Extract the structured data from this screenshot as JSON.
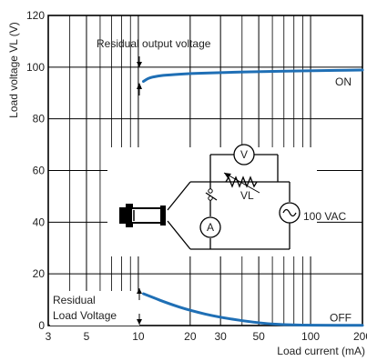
{
  "chart_data": {
    "type": "line",
    "x_scale": "log",
    "xlim": [
      3,
      200
    ],
    "ylim": [
      0,
      120
    ],
    "grid": true,
    "xlabel": "Load current (mA)",
    "ylabel": "Load voltage VL (V)",
    "x_ticks": [
      3,
      5,
      10,
      20,
      30,
      50,
      100,
      200
    ],
    "y_ticks": [
      0,
      20,
      40,
      60,
      80,
      100,
      120
    ],
    "series": [
      {
        "name": "ON",
        "color": "#1f6fb5",
        "points": [
          [
            10.7,
            94.5
          ],
          [
            11.5,
            95.8
          ],
          [
            13,
            96.6
          ],
          [
            15,
            97.0
          ],
          [
            20,
            97.5
          ],
          [
            30,
            97.9
          ],
          [
            50,
            98.3
          ],
          [
            100,
            98.6
          ],
          [
            200,
            98.9
          ]
        ]
      },
      {
        "name": "OFF",
        "color": "#1f6fb5",
        "points": [
          [
            10.7,
            12.3
          ],
          [
            12,
            11.0
          ],
          [
            15,
            8.5
          ],
          [
            20,
            5.8
          ],
          [
            30,
            3.1
          ],
          [
            50,
            1.0
          ],
          [
            70,
            0.3
          ],
          [
            100,
            0.1
          ],
          [
            200,
            0.1
          ]
        ]
      }
    ],
    "annotations": {
      "residual_output": "Residual output voltage",
      "residual_load_line1": "Residual",
      "residual_load_line2": "Load Voltage",
      "circuit_voltmeter": "V",
      "circuit_ammeter": "A",
      "circuit_load": "VL",
      "circuit_source": "100 VAC"
    }
  }
}
